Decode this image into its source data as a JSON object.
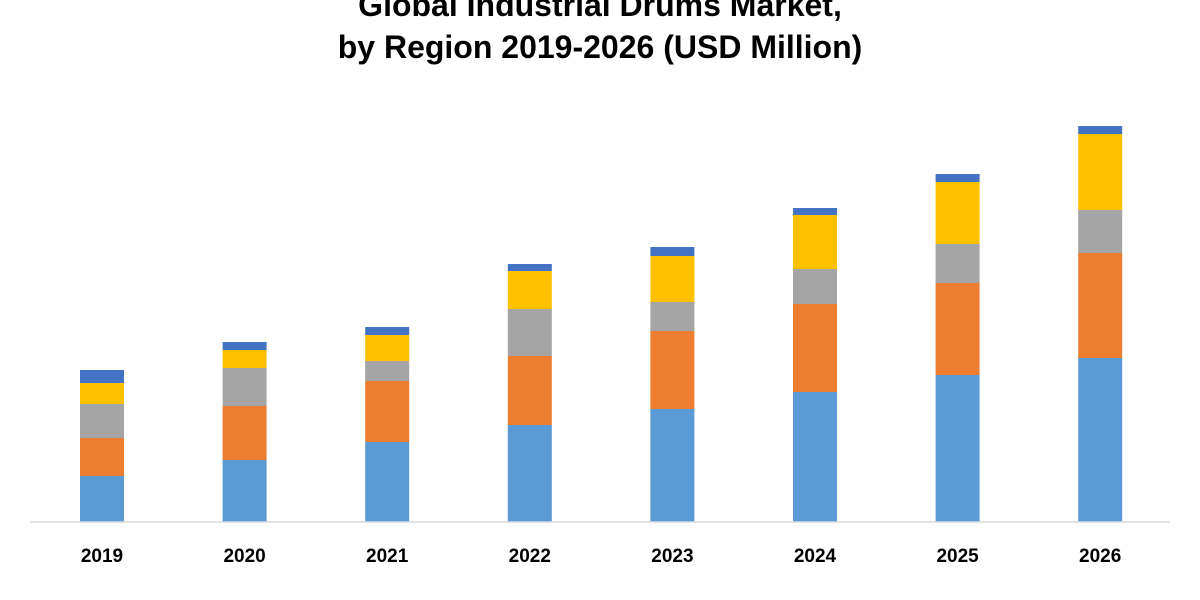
{
  "chart_data": {
    "type": "bar",
    "stacked": true,
    "title_lines": [
      "Global Industrial Drums Market,",
      "by Region 2019-2026 (USD Million)"
    ],
    "categories": [
      "2019",
      "2020",
      "2021",
      "2022",
      "2023",
      "2024",
      "2025",
      "2026"
    ],
    "series": [
      {
        "color": "#5B9BD5",
        "values": [
          46,
          62,
          80,
          97,
          113,
          130,
          147,
          164
        ]
      },
      {
        "color": "#ED7D31",
        "values": [
          38,
          54,
          61,
          69,
          78,
          88,
          92,
          105
        ]
      },
      {
        "color": "#A5A5A5",
        "values": [
          34,
          38,
          20,
          47,
          29,
          35,
          39,
          43
        ]
      },
      {
        "color": "#FFC000",
        "values": [
          21,
          18,
          26,
          38,
          46,
          54,
          62,
          76
        ]
      },
      {
        "color": "#4472C4",
        "values": [
          13,
          8,
          8,
          7,
          9,
          7,
          8,
          8
        ]
      }
    ],
    "ylim": [
      0,
      400
    ],
    "grid": false,
    "legend": "none"
  }
}
